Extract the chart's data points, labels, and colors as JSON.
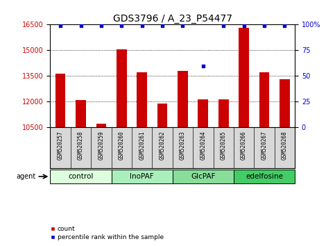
{
  "title": "GDS3796 / A_23_P54477",
  "samples": [
    "GSM520257",
    "GSM520258",
    "GSM520259",
    "GSM520260",
    "GSM520261",
    "GSM520262",
    "GSM520263",
    "GSM520264",
    "GSM520265",
    "GSM520266",
    "GSM520267",
    "GSM520268"
  ],
  "counts": [
    13650,
    12100,
    10700,
    15050,
    13700,
    11900,
    13800,
    12150,
    12130,
    16300,
    13700,
    13300
  ],
  "percentile_ranks": [
    99,
    99,
    99,
    99,
    99,
    99,
    99,
    60,
    99,
    99,
    99,
    99
  ],
  "ylim_left": [
    10500,
    16500
  ],
  "ylim_right": [
    0,
    100
  ],
  "yticks_left": [
    10500,
    12000,
    13500,
    15000,
    16500
  ],
  "yticks_right": [
    0,
    25,
    50,
    75,
    100
  ],
  "bar_color": "#cc0000",
  "scatter_color": "#0000cc",
  "groups": [
    {
      "label": "control",
      "start": 0,
      "end": 3,
      "color": "#ddffdd"
    },
    {
      "label": "InoPAF",
      "start": 3,
      "end": 6,
      "color": "#aaeebb"
    },
    {
      "label": "GlcPAF",
      "start": 6,
      "end": 9,
      "color": "#88dd99"
    },
    {
      "label": "edelfosine",
      "start": 9,
      "end": 12,
      "color": "#44cc66"
    }
  ],
  "legend_count_label": "count",
  "legend_pct_label": "percentile rank within the sample",
  "agent_label": "agent",
  "background_color": "#ffffff",
  "plot_bg_color": "#ffffff",
  "sample_box_bg": "#d8d8d8",
  "grid_color": "#000000",
  "title_fontsize": 10,
  "tick_fontsize": 7,
  "label_fontsize": 6,
  "bar_width": 0.5
}
